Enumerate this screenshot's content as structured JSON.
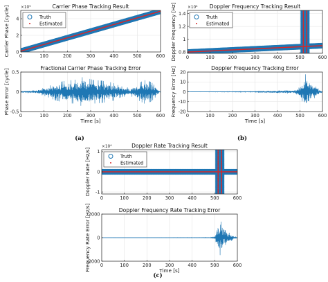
{
  "figure_labels": [
    "(a)",
    "(b)",
    "(c)"
  ],
  "colors": {
    "truth": "#1f77b4",
    "estimated": "#d62728",
    "error": "#1f77b4",
    "grid": "#e3e3e3",
    "axes": "#222222"
  },
  "chart_data": [
    {
      "id": "carrier_phase",
      "type": "scatter",
      "title": "Carrier Phase Tracking Result",
      "xlabel": "",
      "ylabel": "Carrier Phase [cycle]",
      "exponent": "×10⁵",
      "xlim": [
        0,
        600
      ],
      "ylim": [
        0,
        5
      ],
      "xticks": [
        0,
        100,
        200,
        300,
        400,
        500,
        600
      ],
      "yticks": [
        0,
        2,
        4
      ],
      "grid": true,
      "legend": {
        "position": "top-left",
        "entries": [
          "Truth",
          "Estimated"
        ]
      },
      "series": [
        {
          "name": "Truth",
          "marker": "circle",
          "x": [
            0,
            600
          ],
          "y": [
            0.1,
            4.9
          ]
        },
        {
          "name": "Estimated",
          "marker": "dot",
          "x": [
            0,
            600
          ],
          "y": [
            0.1,
            4.9
          ]
        }
      ]
    },
    {
      "id": "phase_error",
      "type": "line",
      "title": "Fractional Carrier Phase Tracking Error",
      "xlabel": "Time [s]",
      "ylabel": "Phase Error [cycle]",
      "xlim": [
        0,
        600
      ],
      "ylim": [
        -0.5,
        0.5
      ],
      "xticks": [
        0,
        100,
        200,
        300,
        400,
        500,
        600
      ],
      "yticks": [
        -0.5,
        0,
        0.5
      ],
      "grid": true,
      "series": [
        {
          "name": "",
          "x": [
            0,
            70,
            110,
            150,
            190,
            230,
            270,
            310,
            350,
            390,
            430,
            470,
            500,
            530,
            560,
            600
          ],
          "y": [
            0.02,
            0.05,
            0.12,
            0.22,
            0.28,
            0.3,
            0.38,
            0.3,
            0.28,
            0.24,
            0.14,
            0.1,
            0.2,
            0.3,
            0.25,
            0.0
          ]
        }
      ]
    },
    {
      "id": "doppler_freq",
      "type": "scatter",
      "title": "Doppler Frequency Tracking Result",
      "xlabel": "",
      "ylabel": "Doppler Frequency [Hz]",
      "exponent": "×10⁴",
      "xlim": [
        0,
        600
      ],
      "ylim": [
        0.78,
        1.45
      ],
      "xticks": [
        0,
        100,
        200,
        300,
        400,
        500,
        600
      ],
      "yticks": [
        0.8,
        1,
        1.2,
        1.4
      ],
      "grid": true,
      "legend": {
        "position": "top-left",
        "entries": [
          "Truth",
          "Estimated"
        ]
      },
      "series": [
        {
          "name": "Truth",
          "marker": "circle",
          "x": [
            0,
            600
          ],
          "y": [
            0.8,
            0.9
          ]
        },
        {
          "name": "Estimated",
          "marker": "dot",
          "x": [
            0,
            600
          ],
          "y": [
            0.8,
            0.9
          ]
        }
      ],
      "spikes": [
        515,
        530
      ]
    },
    {
      "id": "doppler_error",
      "type": "line",
      "title": "Doppler Frequency Tracking Error",
      "xlabel": "Time [s]",
      "ylabel": "Frequency Error [Hz]",
      "xlim": [
        0,
        600
      ],
      "ylim": [
        -20,
        20
      ],
      "xticks": [
        0,
        100,
        200,
        300,
        400,
        500,
        600
      ],
      "yticks": [
        -20,
        -10,
        0,
        10,
        20
      ],
      "grid": true,
      "series": [
        {
          "name": "",
          "x": [
            0,
            100,
            200,
            300,
            400,
            480,
            500,
            515,
            525,
            535,
            545,
            600
          ],
          "y": [
            0,
            0.2,
            0.3,
            0.4,
            1.2,
            2,
            5,
            12,
            18,
            15,
            10,
            0
          ]
        }
      ]
    },
    {
      "id": "doppler_rate",
      "type": "scatter",
      "title": "Doppler Rate Tracking Result",
      "xlabel": "",
      "ylabel": "Doppler Rate [Hz/s]",
      "exponent": "×10⁴",
      "xlim": [
        0,
        600
      ],
      "ylim": [
        -1.1,
        1.1
      ],
      "xticks": [
        0,
        100,
        200,
        300,
        400,
        500,
        600
      ],
      "yticks": [
        -1,
        0,
        1
      ],
      "grid": true,
      "legend": {
        "position": "top-left",
        "entries": [
          "Truth",
          "Estimated"
        ]
      },
      "series": [
        {
          "name": "Truth",
          "marker": "circle",
          "x": [
            0,
            600
          ],
          "y": [
            0,
            0
          ]
        },
        {
          "name": "Estimated",
          "marker": "dot",
          "x": [
            0,
            600
          ],
          "y": [
            0,
            0
          ]
        }
      ],
      "spikes": [
        515,
        530
      ]
    },
    {
      "id": "doppler_rate_error",
      "type": "line",
      "title": "Doppler Frequency Rate Tracking Error",
      "xlabel": "Time [s]",
      "ylabel": "Frequency Rate Error [Hz/s]",
      "xlim": [
        0,
        600
      ],
      "ylim": [
        -2000,
        2000
      ],
      "xticks": [
        0,
        100,
        200,
        300,
        400,
        500,
        600
      ],
      "yticks": [
        -2000,
        0,
        2000
      ],
      "grid": true,
      "series": [
        {
          "name": "",
          "x": [
            0,
            480,
            500,
            510,
            520,
            530,
            540,
            600
          ],
          "y": [
            0,
            20,
            200,
            900,
            1600,
            1300,
            700,
            0
          ]
        }
      ]
    }
  ]
}
